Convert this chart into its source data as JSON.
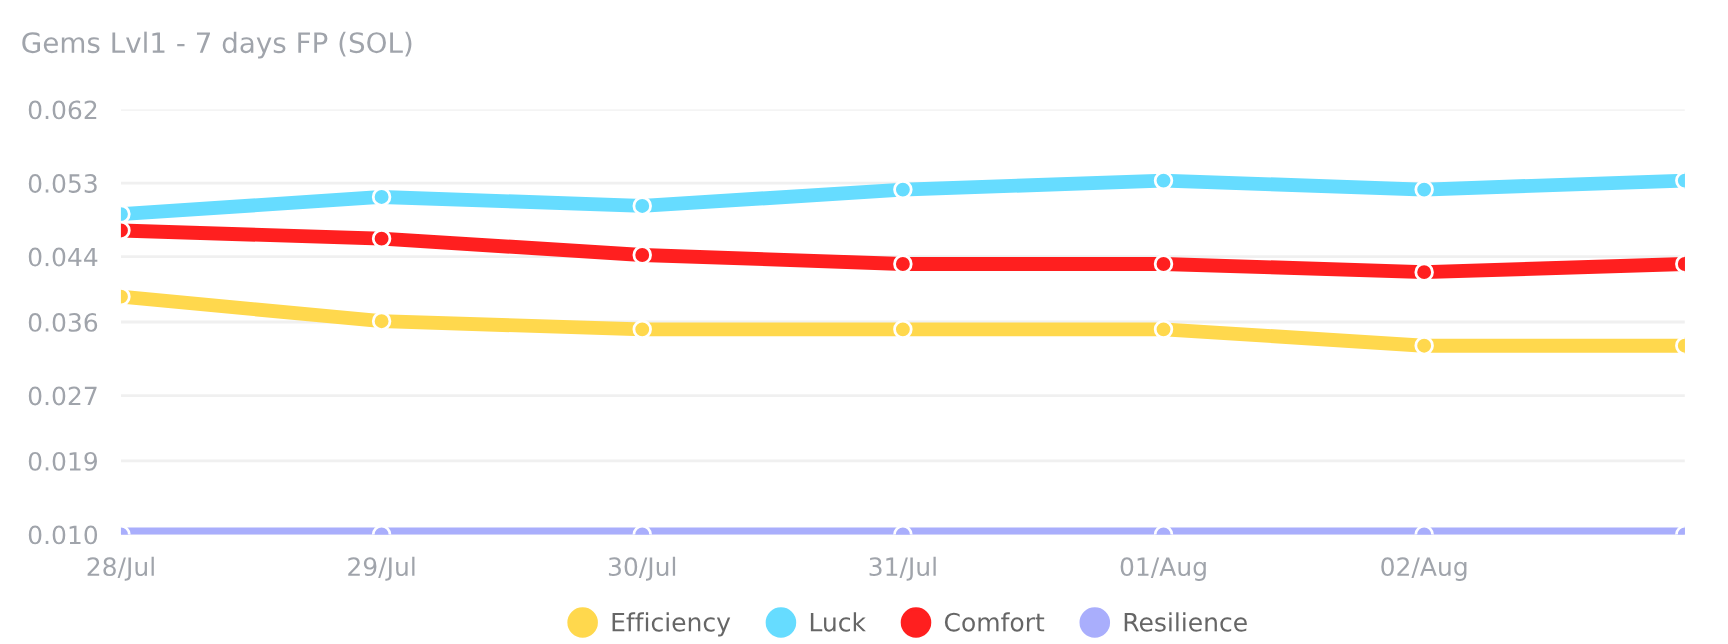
{
  "chart_data": {
    "type": "line",
    "title": "Gems Lvl1 - 7 days FP (SOL)",
    "categories": [
      "28/Jul",
      "29/Jul",
      "30/Jul",
      "31/Jul",
      "01/Aug",
      "02/Aug",
      null
    ],
    "series": [
      {
        "name": "Efficiency",
        "color": "#ffd84d",
        "values": [
          0.0391,
          0.0361,
          0.0351,
          0.0351,
          0.0351,
          0.0331,
          0.0331
        ]
      },
      {
        "name": "Luck",
        "color": "#66dcff",
        "values": [
          0.0492,
          0.0513,
          0.0502,
          0.0522,
          0.0533,
          0.0522,
          0.0533
        ]
      },
      {
        "name": "Comfort",
        "color": "#ff1f1f",
        "values": [
          0.0472,
          0.0462,
          0.0442,
          0.0431,
          0.0431,
          0.0421,
          0.0431
        ]
      },
      {
        "name": "Resilience",
        "color": "#a9aefc",
        "values": [
          0.01,
          0.01,
          0.01,
          0.01,
          0.01,
          0.01,
          0.01
        ]
      }
    ],
    "ylim": [
      0.01,
      0.062
    ],
    "yticks": [
      {
        "value": 0.01,
        "label": "0.010"
      },
      0.019,
      0.027,
      0.036,
      0.044,
      0.053,
      0.062
    ],
    "grid": "y",
    "legend": "bottom",
    "marker": "circle",
    "line_style": "solid"
  }
}
